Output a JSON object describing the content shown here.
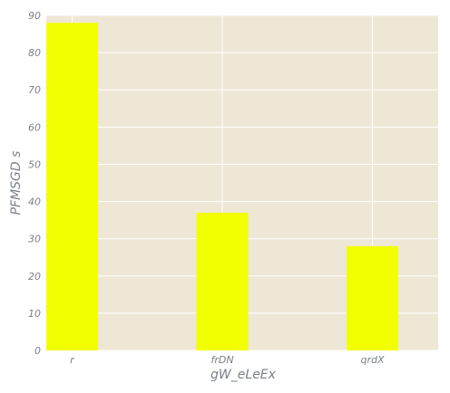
{
  "chart_data": {
    "type": "bar",
    "categories": [
      "r",
      "frDN",
      "qrdX"
    ],
    "values": [
      88,
      37,
      28
    ],
    "xlabel": "gW_eLeEx",
    "ylabel": "PFMSGD s",
    "ylim": [
      0,
      90
    ],
    "yticks": [
      0,
      10,
      20,
      30,
      40,
      50,
      60,
      70,
      80,
      90
    ],
    "grid": true,
    "colors": {
      "bar": "#f2ff00",
      "background": "#efe7d6",
      "grid": "#ffffff",
      "text": "#7a7f88"
    }
  }
}
